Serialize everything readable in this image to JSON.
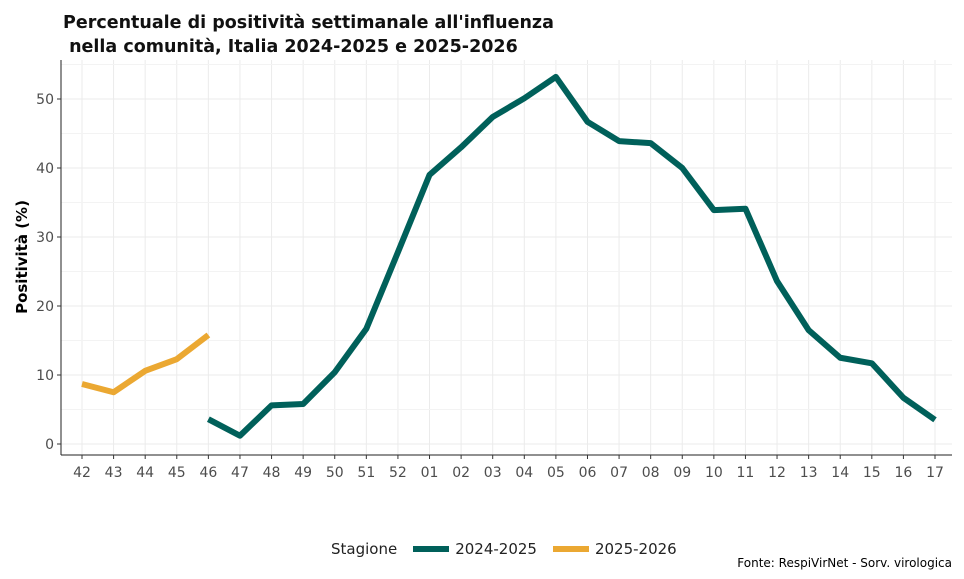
{
  "chart_data": {
    "type": "line",
    "title": "Percentuale di positività settimanale all'influenza\n nella comunità, Italia 2024-2025 e 2025-2026",
    "xlabel": "",
    "ylabel": "Positività (%)",
    "ylim": [
      0,
      56
    ],
    "yticks": [
      0,
      10,
      20,
      30,
      40,
      50
    ],
    "grid": true,
    "legend_title": "Stagione",
    "legend_position": "bottom",
    "categories": [
      "42",
      "43",
      "44",
      "45",
      "46",
      "47",
      "48",
      "49",
      "50",
      "51",
      "52",
      "01",
      "02",
      "03",
      "04",
      "05",
      "06",
      "07",
      "08",
      "09",
      "10",
      "11",
      "12",
      "13",
      "14",
      "15",
      "16",
      "17"
    ],
    "series": [
      {
        "name": "2024-2025",
        "color": "#00605a",
        "values": [
          null,
          null,
          null,
          null,
          3.6,
          1.2,
          5.6,
          5.8,
          10.4,
          16.7,
          27.8,
          39.0,
          43.0,
          47.4,
          50.1,
          53.2,
          46.7,
          43.9,
          43.6,
          40.0,
          33.9,
          34.1,
          23.6,
          16.5,
          12.5,
          11.7,
          6.7,
          3.5
        ]
      },
      {
        "name": "2025-2026",
        "color": "#eba832",
        "values": [
          8.7,
          7.5,
          10.6,
          12.3,
          15.8,
          null,
          null,
          null,
          null,
          null,
          null,
          null,
          null,
          null,
          null,
          null,
          null,
          null,
          null,
          null,
          null,
          null,
          null,
          null,
          null,
          null,
          null,
          null
        ]
      }
    ],
    "source": "Fonte: RespiVirNet - Sorv. virologica"
  }
}
